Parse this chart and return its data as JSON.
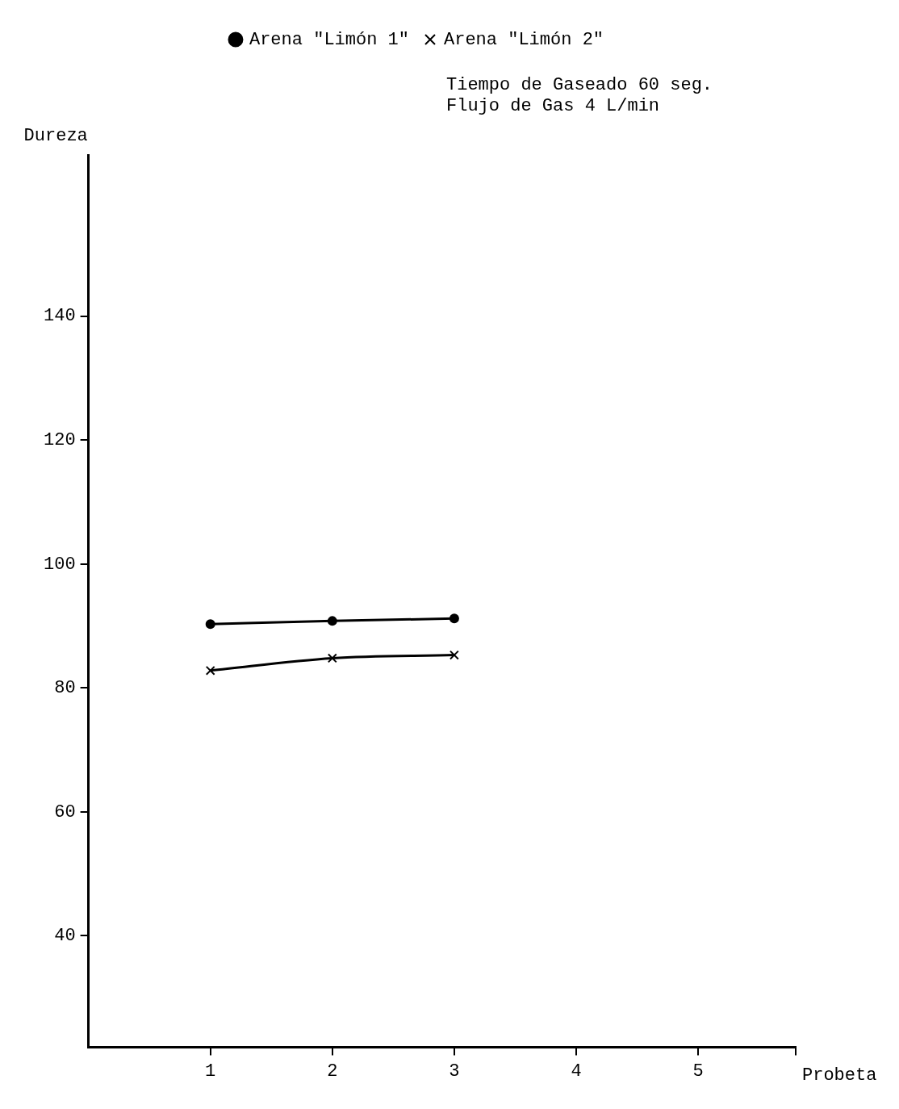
{
  "chart_data": {
    "type": "line",
    "xlabel": "Probeta",
    "ylabel": "Dureza",
    "annotations": [
      "Tiempo de Gaseado 60 seg.",
      "Flujo de Gas 4 L/min"
    ],
    "xlim": [
      0,
      5.8
    ],
    "xticks": [
      1,
      2,
      3,
      4,
      5,
      {
        "value": 5.8,
        "label": null
      }
    ],
    "ylim": [
      22,
      166
    ],
    "yticks": [
      40,
      60,
      80,
      100,
      120,
      140
    ],
    "grid": false,
    "legend": "top",
    "line_style": "solid",
    "series": [
      {
        "name": "Arena \"Limón 1\"",
        "color": "#000000",
        "marker": "circle",
        "x": [
          1,
          2,
          3
        ],
        "values": [
          90.3,
          90.8,
          91.2
        ]
      },
      {
        "name": "Arena \"Limón 2\"",
        "color": "#000000",
        "marker": "cross",
        "x": [
          1,
          2,
          3
        ],
        "values": [
          82.8,
          84.8,
          85.3
        ]
      }
    ]
  }
}
